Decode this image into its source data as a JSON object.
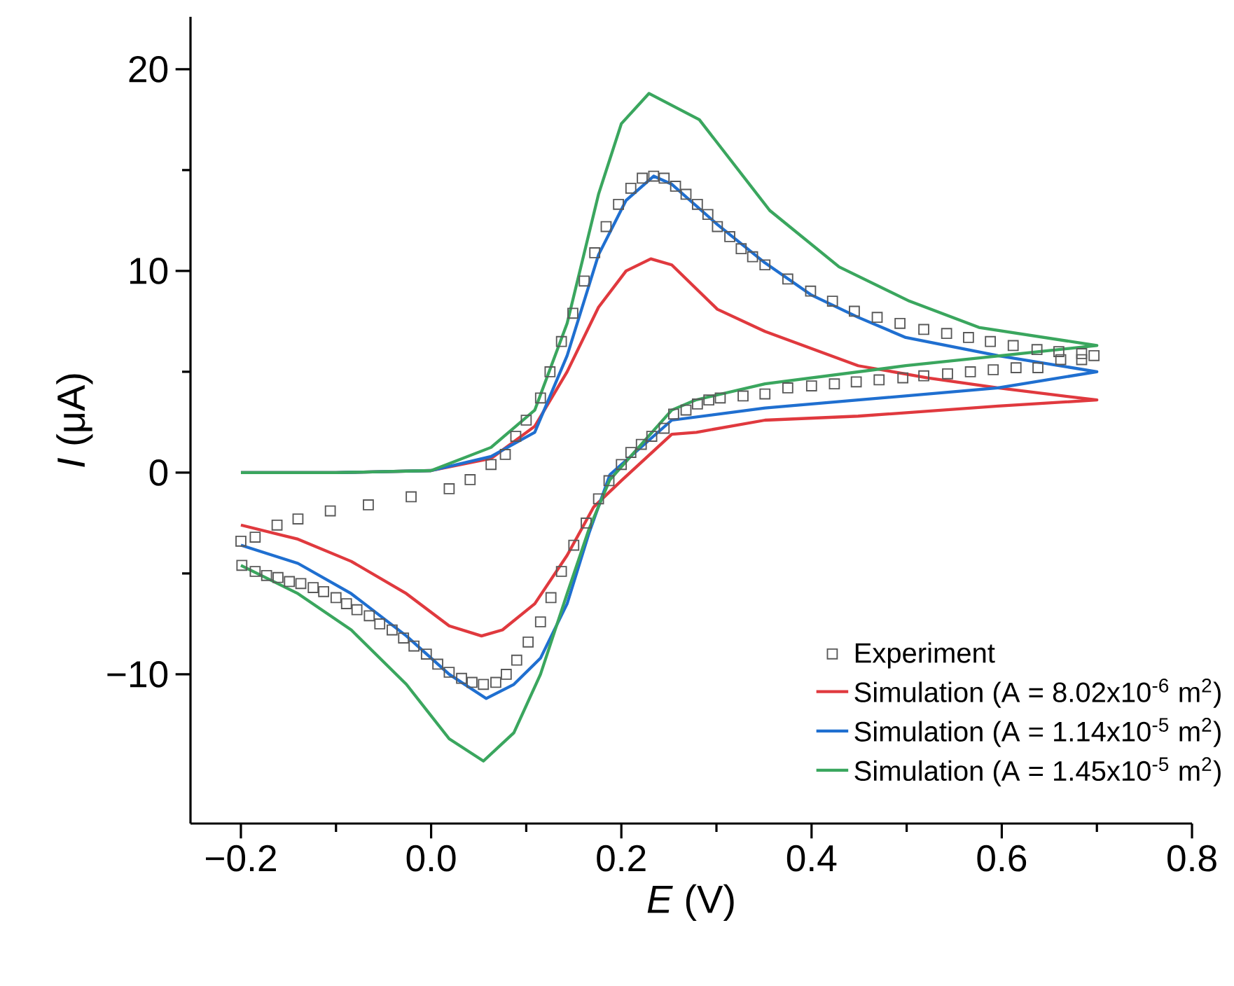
{
  "chart_data": {
    "type": "line",
    "xlabel": "*E* (V)",
    "ylabel": "*I* (μA)",
    "xlim": [
      -0.253,
      0.8
    ],
    "ylim": [
      -17.4,
      22.6
    ],
    "xticks": [
      {
        "value": -0.2,
        "label": "−0.2"
      },
      {
        "value": 0,
        "label": "0.0"
      },
      {
        "value": 0.2,
        "label": "0.2"
      },
      {
        "value": 0.4,
        "label": "0.4"
      },
      {
        "value": 0.6,
        "label": "0.6"
      },
      {
        "value": 0.8,
        "label": "0.8"
      }
    ],
    "yticks": [
      {
        "value": -10,
        "label": "−10"
      },
      0,
      10,
      20
    ],
    "legend": "bottom right",
    "grid": false,
    "series": [
      {
        "name": "Experiment",
        "type": "scatter",
        "marker": "square",
        "color": "#595959",
        "x": [
          -0.2,
          -0.185,
          -0.162,
          -0.14,
          -0.106,
          -0.066,
          -0.021,
          0.019,
          0.041,
          0.063,
          0.078,
          0.089,
          0.1,
          0.115,
          0.125,
          0.137,
          0.149,
          0.161,
          0.172,
          0.184,
          0.197,
          0.21,
          0.222,
          0.234,
          0.245,
          0.257,
          0.268,
          0.28,
          0.291,
          0.301,
          0.314,
          0.326,
          0.338,
          0.351,
          0.375,
          0.399,
          0.422,
          0.445,
          0.469,
          0.493,
          0.518,
          0.542,
          0.565,
          0.588,
          0.612,
          0.637,
          0.66,
          0.684,
          0.697,
          0.684,
          0.662,
          0.638,
          0.615,
          0.591,
          0.567,
          0.543,
          0.518,
          0.496,
          0.471,
          0.447,
          0.424,
          0.4,
          0.375,
          0.351,
          0.328,
          0.304,
          0.292,
          0.28,
          0.268,
          0.255,
          0.245,
          0.232,
          0.221,
          0.21,
          0.2,
          0.187,
          0.176,
          0.163,
          0.15,
          0.137,
          0.126,
          0.115,
          0.102,
          0.09,
          0.079,
          0.068,
          0.055,
          0.043,
          0.032,
          0.019,
          0.007,
          -0.005,
          -0.018,
          -0.029,
          -0.041,
          -0.054,
          -0.065,
          -0.078,
          -0.089,
          -0.1,
          -0.113,
          -0.124,
          -0.137,
          -0.149,
          -0.161,
          -0.173,
          -0.185,
          -0.199
        ],
        "values": [
          -3.4,
          -3.2,
          -2.6,
          -2.3,
          -1.9,
          -1.6,
          -1.2,
          -0.8,
          -0.35,
          0.4,
          0.9,
          1.8,
          2.6,
          3.7,
          5.0,
          6.5,
          7.9,
          9.5,
          10.9,
          12.2,
          13.3,
          14.1,
          14.6,
          14.7,
          14.6,
          14.2,
          13.8,
          13.3,
          12.8,
          12.2,
          11.7,
          11.1,
          10.7,
          10.3,
          9.6,
          9.0,
          8.5,
          8.0,
          7.7,
          7.4,
          7.1,
          6.9,
          6.7,
          6.5,
          6.3,
          6.1,
          6.0,
          5.9,
          5.8,
          5.6,
          5.6,
          5.2,
          5.2,
          5.1,
          5.0,
          4.9,
          4.8,
          4.7,
          4.6,
          4.5,
          4.4,
          4.3,
          4.2,
          3.9,
          3.8,
          3.7,
          3.6,
          3.4,
          3.1,
          2.9,
          2.2,
          1.8,
          1.4,
          1.0,
          0.4,
          -0.4,
          -1.3,
          -2.5,
          -3.6,
          -4.9,
          -6.2,
          -7.4,
          -8.4,
          -9.3,
          -10.0,
          -10.4,
          -10.5,
          -10.4,
          -10.2,
          -9.9,
          -9.5,
          -9.0,
          -8.6,
          -8.2,
          -7.8,
          -7.5,
          -7.1,
          -6.8,
          -6.5,
          -6.2,
          -5.9,
          -5.7,
          -5.5,
          -5.4,
          -5.2,
          -5.1,
          -4.9,
          -4.6
        ]
      },
      {
        "name": "Simulation (A = 8.02x10$^{-6}$ m$^{2}$)",
        "color": "#e0393e",
        "x": [
          -0.2,
          -0.1,
          0.0,
          0.063,
          0.109,
          0.143,
          0.176,
          0.205,
          0.231,
          0.253,
          0.301,
          0.351,
          0.449,
          0.522,
          0.596,
          0.7,
          0.596,
          0.449,
          0.351,
          0.279,
          0.253,
          0.2,
          0.171,
          0.143,
          0.109,
          0.075,
          0.053,
          0.019,
          -0.026,
          -0.084,
          -0.14,
          -0.2
        ],
        "values": [
          0,
          0,
          0.1,
          0.7,
          2.3,
          5.0,
          8.2,
          10.0,
          10.6,
          10.3,
          8.1,
          7.0,
          5.3,
          4.7,
          4.2,
          3.6,
          3.3,
          2.8,
          2.6,
          2.0,
          1.9,
          -0.4,
          -1.7,
          -4.1,
          -6.5,
          -7.8,
          -8.1,
          -7.6,
          -6.0,
          -4.4,
          -3.3,
          -2.6
        ]
      },
      {
        "name": "Simulation (A = 1.14x10$^{-5}$ m$^{2}$)",
        "color": "#1f6fd0",
        "x": [
          -0.2,
          -0.1,
          0.0,
          0.063,
          0.109,
          0.143,
          0.176,
          0.205,
          0.234,
          0.253,
          0.301,
          0.351,
          0.4,
          0.449,
          0.499,
          0.596,
          0.7,
          0.596,
          0.449,
          0.351,
          0.253,
          0.188,
          0.166,
          0.143,
          0.115,
          0.087,
          0.058,
          0.019,
          -0.026,
          -0.084,
          -0.14,
          -0.2
        ],
        "values": [
          0,
          0,
          0.1,
          0.8,
          2.0,
          5.8,
          10.8,
          13.5,
          14.7,
          14.3,
          12.3,
          10.4,
          8.8,
          7.7,
          6.7,
          5.8,
          5.0,
          4.2,
          3.6,
          3.2,
          2.6,
          -0.1,
          -3.0,
          -6.5,
          -9.2,
          -10.5,
          -11.2,
          -10.0,
          -8.1,
          -6.0,
          -4.5,
          -3.6
        ]
      },
      {
        "name": "Simulation (A = 1.45x10$^{-5}$ m$^{2}$)",
        "color": "#3aa65e",
        "x": [
          -0.2,
          -0.1,
          0.0,
          0.063,
          0.109,
          0.143,
          0.176,
          0.2,
          0.229,
          0.282,
          0.356,
          0.429,
          0.503,
          0.576,
          0.7,
          0.499,
          0.351,
          0.278,
          0.253,
          0.188,
          0.166,
          0.143,
          0.115,
          0.087,
          0.055,
          0.019,
          -0.026,
          -0.084,
          -0.14,
          -0.2
        ],
        "values": [
          0,
          0,
          0.1,
          1.25,
          3.1,
          7.4,
          13.8,
          17.3,
          18.8,
          17.5,
          13.0,
          10.2,
          8.5,
          7.2,
          6.3,
          5.3,
          4.4,
          3.6,
          3.1,
          -0.35,
          -2.8,
          -6.0,
          -10.0,
          -12.9,
          -14.3,
          -13.2,
          -10.5,
          -7.8,
          -6.0,
          -4.6
        ]
      }
    ]
  }
}
